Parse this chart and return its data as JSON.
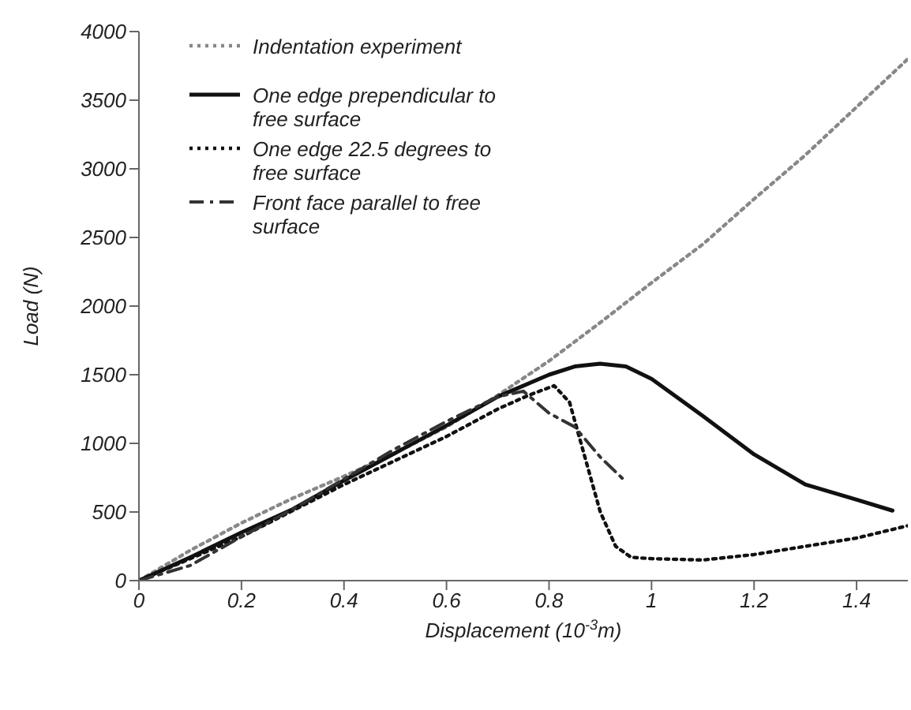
{
  "chart_data": {
    "type": "line",
    "xlabel": "Displacement (10$^{-3}$m)",
    "ylabel": "Load (N)",
    "xlim": [
      0,
      1.5
    ],
    "xticks": [
      0,
      0.2,
      0.4,
      0.6,
      0.8,
      1,
      1.2,
      1.4
    ],
    "ylim": [
      0,
      4000
    ],
    "yticks": [
      0,
      500,
      1000,
      1500,
      2000,
      2500,
      3000,
      3500,
      4000
    ],
    "legend": "top left",
    "marker": "none",
    "series": [
      {
        "name": "Indentation experiment",
        "color": "#888888",
        "line_style": "dotted",
        "x": [
          0,
          0.1,
          0.2,
          0.3,
          0.4,
          0.5,
          0.6,
          0.7,
          0.8,
          0.9,
          1.0,
          1.1,
          1.2,
          1.3,
          1.4,
          1.5
        ],
        "values": [
          0,
          220,
          420,
          600,
          760,
          930,
          1120,
          1350,
          1600,
          1880,
          2170,
          2450,
          2780,
          3100,
          3450,
          3800
        ]
      },
      {
        "name": "One edge prependicular to free surface",
        "color": "#111111",
        "line_style": "solid",
        "x": [
          0,
          0.1,
          0.2,
          0.3,
          0.4,
          0.5,
          0.6,
          0.7,
          0.8,
          0.85,
          0.9,
          0.95,
          1.0,
          1.1,
          1.2,
          1.3,
          1.4,
          1.47
        ],
        "values": [
          0,
          170,
          350,
          520,
          730,
          930,
          1130,
          1340,
          1500,
          1560,
          1580,
          1560,
          1470,
          1200,
          920,
          700,
          590,
          510
        ]
      },
      {
        "name": "One edge 22.5 degrees to free surface",
        "color": "#111111",
        "line_style": "dotted",
        "x": [
          0,
          0.2,
          0.4,
          0.6,
          0.7,
          0.76,
          0.81,
          0.84,
          0.87,
          0.9,
          0.93,
          0.96,
          1.0,
          1.1,
          1.2,
          1.3,
          1.4,
          1.5
        ],
        "values": [
          0,
          320,
          700,
          1050,
          1250,
          1350,
          1420,
          1300,
          900,
          500,
          250,
          170,
          160,
          150,
          190,
          250,
          310,
          400
        ]
      },
      {
        "name": "Front face parallel to free surface",
        "color": "#333333",
        "line_style": "dashed",
        "x": [
          0,
          0.1,
          0.2,
          0.3,
          0.4,
          0.5,
          0.6,
          0.7,
          0.75,
          0.8,
          0.85,
          0.9,
          0.95
        ],
        "values": [
          0,
          110,
          320,
          520,
          740,
          960,
          1160,
          1340,
          1380,
          1220,
          1120,
          900,
          720
        ]
      }
    ]
  }
}
